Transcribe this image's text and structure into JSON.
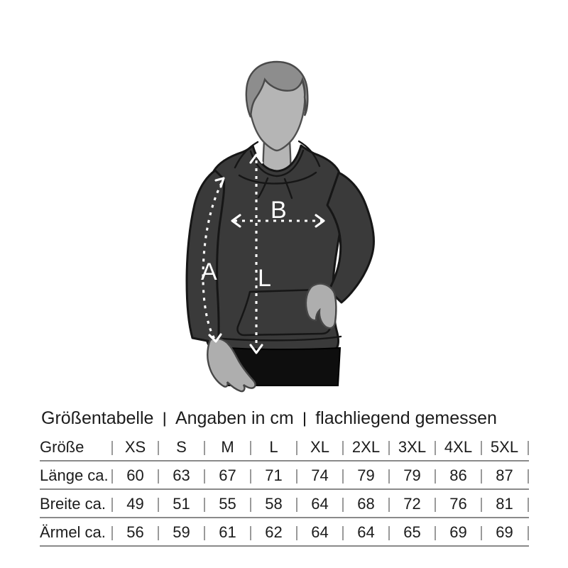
{
  "figure": {
    "labels": {
      "sleeve": "A",
      "chest_width": "B",
      "length": "L"
    },
    "colors": {
      "hoodie": "#3a3a3a",
      "outline": "#161616",
      "skin": "#b5b5b5",
      "hair": "#8d8d8d",
      "pants": "#0e0e0e",
      "arrow": "#ffffff"
    }
  },
  "header": {
    "parts": [
      "Größentabelle",
      "Angaben in cm",
      "flachliegend gemessen"
    ],
    "separator": "|"
  },
  "table": {
    "size_label": "Größe",
    "sizes": [
      "XS",
      "S",
      "M",
      "L",
      "XL",
      "2XL",
      "3XL",
      "4XL",
      "5XL"
    ],
    "rows": [
      {
        "label": "Länge ca.",
        "values": [
          "60",
          "63",
          "67",
          "71",
          "74",
          "79",
          "79",
          "86",
          "87"
        ]
      },
      {
        "label": "Breite ca.",
        "values": [
          "49",
          "51",
          "55",
          "58",
          "64",
          "68",
          "72",
          "76",
          "81"
        ]
      },
      {
        "label": "Ärmel ca.",
        "values": [
          "56",
          "59",
          "61",
          "62",
          "64",
          "64",
          "65",
          "69",
          "69"
        ]
      }
    ],
    "line_color": "#8a8a8a",
    "separator_color": "#9a9a9a"
  }
}
